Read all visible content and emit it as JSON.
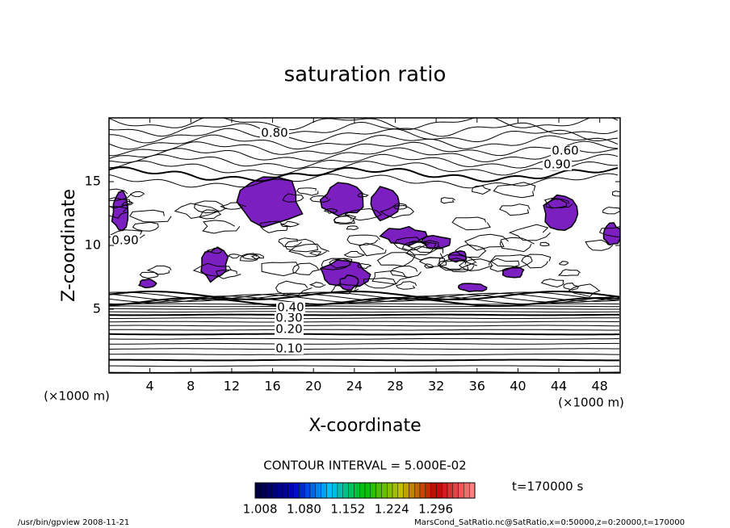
{
  "chart_data": {
    "type": "contour",
    "title": "saturation ratio",
    "x_label": "X-coordinate",
    "y_label": "Z-coordinate",
    "x_unit": "(×1000 m)",
    "y_unit": "(×1000 m)",
    "xlim": [
      0,
      50
    ],
    "ylim": [
      0,
      20
    ],
    "xticks": [
      4,
      8,
      12,
      16,
      20,
      24,
      28,
      32,
      36,
      40,
      44,
      48
    ],
    "yticks": [
      5,
      10,
      15
    ],
    "fill_color": "#7b1fc0",
    "contour_labels": [
      {
        "value": 0.1,
        "label": "0.10"
      },
      {
        "value": 0.2,
        "label": "0.20"
      },
      {
        "value": 0.3,
        "label": "0.30"
      },
      {
        "value": 0.4,
        "label": "0.40"
      },
      {
        "value": 0.6,
        "label": "0.60"
      },
      {
        "value": 0.8,
        "label": "0.80"
      },
      {
        "value": 0.9,
        "label": "0.90"
      },
      {
        "value": 0.9,
        "label": "0.90"
      }
    ],
    "contour_interval_text": "CONTOUR INTERVAL = 5.000E-02",
    "time_text": "t=170000 s",
    "colorbar": {
      "lim": [
        1.0,
        1.36
      ],
      "ticks": [
        1.008,
        {
          "value": 1.08,
          "label": "1.080"
        },
        1.152,
        1.224,
        1.296
      ],
      "colors": [
        "#000040",
        "#0000c0",
        "#00c0ff",
        "#00c000",
        "#c0c000",
        "#c00000",
        "#ff8080"
      ]
    },
    "footer_left": "/usr/bin/gpview  2008-11-21",
    "footer_right": "MarsCond_SatRatio.nc@SatRatio,x=0:50000,z=0:20000,t=170000"
  }
}
